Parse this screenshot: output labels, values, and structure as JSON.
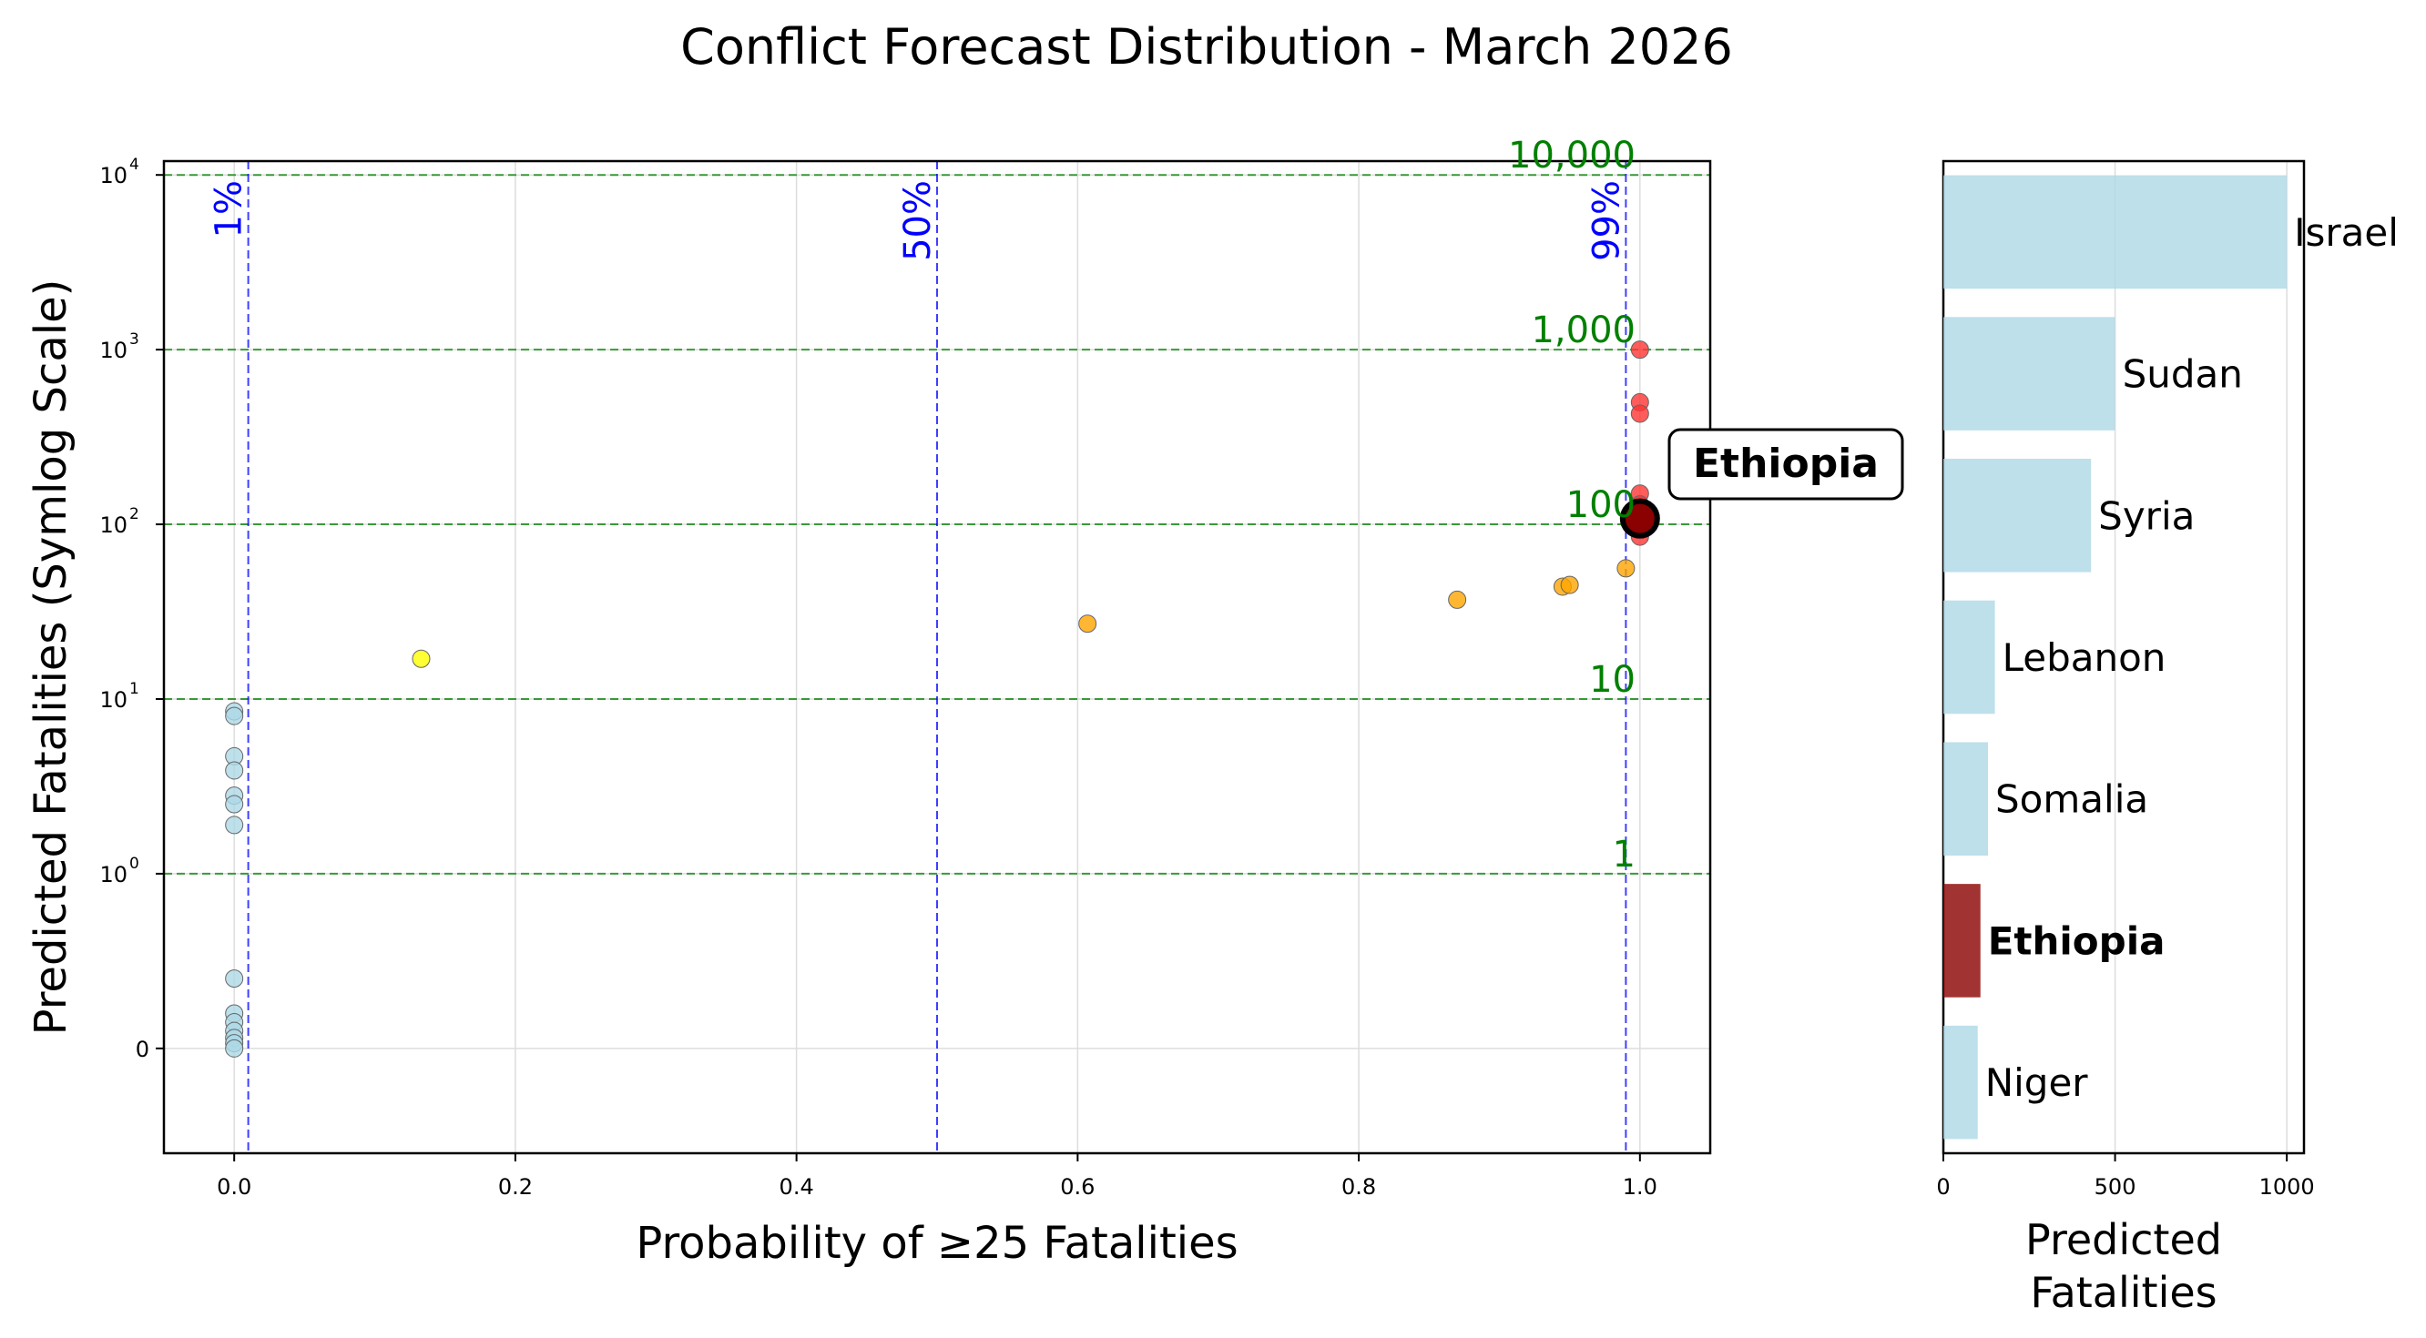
{
  "figure": {
    "title": "Conflict Forecast Distribution - March 2026"
  },
  "colors": {
    "zero_fatality_points": "#add8e6",
    "low_prob_points": "#ffff00",
    "mid_prob_points": "#ffa500",
    "high_fatality_points": "#ff3333",
    "highlight": "#8b0000",
    "threshold_lines": "#0000ff",
    "reference_lines": "#008000",
    "bar_default": "#add8e6",
    "bar_highlight": "#8b0000",
    "grid": "#dddddd"
  },
  "chart_data": [
    {
      "type": "scatter",
      "xlabel": "Probability of ≥25 Fatalities",
      "ylabel": "Predicted Fatalities (Symlog Scale)",
      "xlim": [
        -0.05,
        1.05
      ],
      "xticks": [
        0.0,
        0.2,
        0.4,
        0.6,
        0.8,
        1.0
      ],
      "xtick_labels": [
        "0.0",
        "0.2",
        "0.4",
        "0.6",
        "0.8",
        "1.0"
      ],
      "yscale": "symlog",
      "ylim": [
        -0.6,
        12000
      ],
      "yticks": [
        {
          "value": 0,
          "base": "0",
          "exp": ""
        },
        {
          "value": 1,
          "base": "10",
          "exp": "0"
        },
        {
          "value": 10,
          "base": "10",
          "exp": "1"
        },
        {
          "value": 100,
          "base": "10",
          "exp": "2"
        },
        {
          "value": 1000,
          "base": "10",
          "exp": "3"
        },
        {
          "value": 10000,
          "base": "10",
          "exp": "4"
        }
      ],
      "grid": true,
      "threshold_lines": [
        {
          "x": 0.01,
          "label": "1%"
        },
        {
          "x": 0.5,
          "label": "50%"
        },
        {
          "x": 0.99,
          "label": "99%"
        }
      ],
      "reference_lines": [
        {
          "y": 1,
          "label": "1"
        },
        {
          "y": 10,
          "label": "10"
        },
        {
          "y": 100,
          "label": "100"
        },
        {
          "y": 1000,
          "label": "1,000"
        },
        {
          "y": 10000,
          "label": "10,000"
        }
      ],
      "points": [
        {
          "x": 0.0,
          "y": 8.5,
          "group": "zero"
        },
        {
          "x": 0.0,
          "y": 8.0,
          "group": "zero"
        },
        {
          "x": 0.0,
          "y": 4.7,
          "group": "zero"
        },
        {
          "x": 0.0,
          "y": 3.9,
          "group": "zero"
        },
        {
          "x": 0.0,
          "y": 2.8,
          "group": "zero"
        },
        {
          "x": 0.0,
          "y": 2.5,
          "group": "zero"
        },
        {
          "x": 0.0,
          "y": 1.9,
          "group": "zero"
        },
        {
          "x": 0.0,
          "y": 0.4,
          "group": "zero"
        },
        {
          "x": 0.0,
          "y": 0.2,
          "group": "zero"
        },
        {
          "x": 0.0,
          "y": 0.15,
          "group": "zero"
        },
        {
          "x": 0.0,
          "y": 0.1,
          "group": "zero"
        },
        {
          "x": 0.0,
          "y": 0.06,
          "group": "zero"
        },
        {
          "x": 0.0,
          "y": 0.03,
          "group": "zero"
        },
        {
          "x": 0.0,
          "y": 0.0,
          "group": "zero"
        },
        {
          "x": 0.133,
          "y": 17,
          "group": "low"
        },
        {
          "x": 0.607,
          "y": 27,
          "group": "mid"
        },
        {
          "x": 0.87,
          "y": 37,
          "group": "mid"
        },
        {
          "x": 0.945,
          "y": 44,
          "group": "mid"
        },
        {
          "x": 0.95,
          "y": 45,
          "group": "mid"
        },
        {
          "x": 0.99,
          "y": 56,
          "group": "mid"
        },
        {
          "x": 1.0,
          "y": 1000,
          "group": "high"
        },
        {
          "x": 1.0,
          "y": 500,
          "group": "high"
        },
        {
          "x": 1.0,
          "y": 430,
          "group": "high"
        },
        {
          "x": 1.0,
          "y": 150,
          "group": "high"
        },
        {
          "x": 1.0,
          "y": 130,
          "group": "high"
        },
        {
          "x": 1.0,
          "y": 85,
          "group": "high"
        }
      ],
      "highlight": {
        "x": 1.0,
        "y": 108,
        "label": "Ethiopia"
      }
    },
    {
      "type": "bar",
      "orientation": "horizontal",
      "xlabel_lines": [
        "Predicted",
        "Fatalities"
      ],
      "xlim": [
        0,
        1050
      ],
      "xticks": [
        0,
        500,
        1000
      ],
      "xtick_labels": [
        "0",
        "500",
        "1000"
      ],
      "categories": [
        "Israel",
        "Sudan",
        "Syria",
        "Lebanon",
        "Somalia",
        "Ethiopia",
        "Niger"
      ],
      "values": [
        1000,
        500,
        430,
        150,
        130,
        108,
        100
      ],
      "highlight": "Ethiopia"
    }
  ]
}
